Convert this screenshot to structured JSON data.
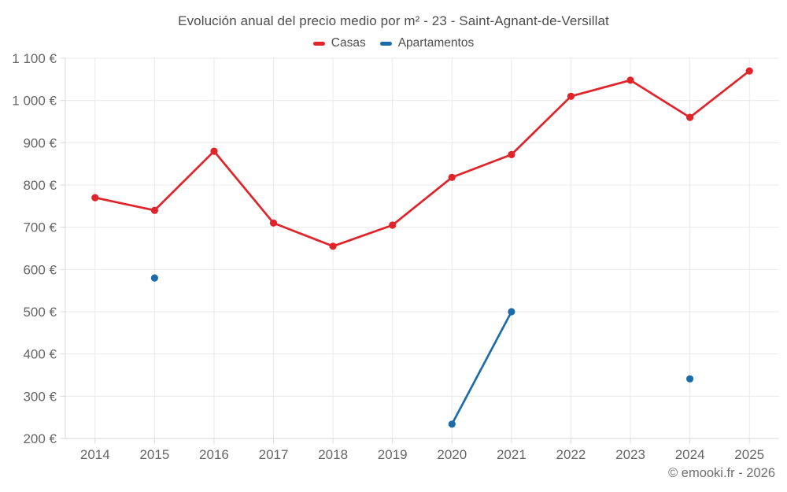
{
  "title": "Evolución anual del precio medio por m² - 23 - Saint-Agnant-de-Versillat",
  "footer": "© emooki.fr - 2026",
  "legend": {
    "items": [
      {
        "label": "Casas",
        "color": "#e02429"
      },
      {
        "label": "Apartamentos",
        "color": "#1b6ca8"
      }
    ]
  },
  "chart_data": {
    "type": "line",
    "title": "Evolución anual del precio medio por m² - 23 - Saint-Agnant-de-Versillat",
    "x": [
      "2014",
      "2015",
      "2016",
      "2017",
      "2018",
      "2019",
      "2020",
      "2021",
      "2022",
      "2023",
      "2024",
      "2025"
    ],
    "series": [
      {
        "name": "Casas",
        "color": "#e02429",
        "values": [
          770,
          740,
          880,
          710,
          655,
          705,
          818,
          872,
          1010,
          1048,
          960,
          1070
        ]
      },
      {
        "name": "Apartamentos",
        "color": "#1b6ca8",
        "values": [
          null,
          580,
          null,
          null,
          null,
          null,
          234,
          500,
          null,
          null,
          341,
          null
        ]
      }
    ],
    "xlabel": "",
    "ylabel": "",
    "ylim": [
      200,
      1100
    ],
    "ytick_step": 100,
    "ytick_suffix": " €",
    "grid": true,
    "legend_position": "top",
    "colors": {
      "grid": "#e9e9e9",
      "spine": "#d9d9d9",
      "tick_text": "#666666",
      "title_text": "#4d4d4d"
    }
  }
}
